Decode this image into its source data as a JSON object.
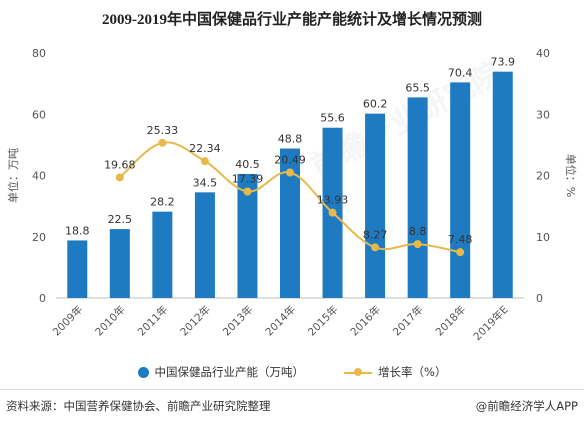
{
  "title": "2009-2019年中国保健品行业产能产能统计及增长情况预测",
  "chart_data": {
    "type": "bar",
    "categories": [
      "2009年",
      "2010年",
      "2011年",
      "2012年",
      "2013年",
      "2014年",
      "2015年",
      "2016年",
      "2017年",
      "2018年",
      "2019年E"
    ],
    "series": [
      {
        "name": "中国保健品行业产能（万吨）",
        "type": "bar",
        "axis": "left",
        "color": "#1f7bc1",
        "values": [
          18.8,
          22.5,
          28.2,
          34.5,
          40.5,
          48.8,
          55.6,
          60.2,
          65.5,
          70.4,
          73.9
        ]
      },
      {
        "name": "增长率（%）",
        "type": "line",
        "axis": "right",
        "color": "#e8b84b",
        "values": [
          null,
          19.68,
          25.33,
          22.34,
          17.39,
          20.49,
          13.93,
          8.27,
          8.8,
          7.48,
          null
        ]
      }
    ],
    "ylabel_left": "单位：万吨",
    "ylabel_right": "单位：%",
    "ylim_left": [
      0,
      80
    ],
    "ylim_right": [
      0,
      40
    ],
    "yticks_left": [
      0,
      20,
      40,
      60,
      80
    ],
    "yticks_right": [
      0,
      10,
      20,
      30,
      40
    ],
    "grid": false,
    "legend_position": "bottom"
  },
  "legend": {
    "bar_label": "中国保健品行业产能（万吨）",
    "line_label": "增长率（%）"
  },
  "footer": {
    "source": "资料来源：中国营养保健协会、前瞻产业研究院整理",
    "brand": "@前瞻经济学人APP"
  },
  "watermark": "前瞻产业研究院"
}
